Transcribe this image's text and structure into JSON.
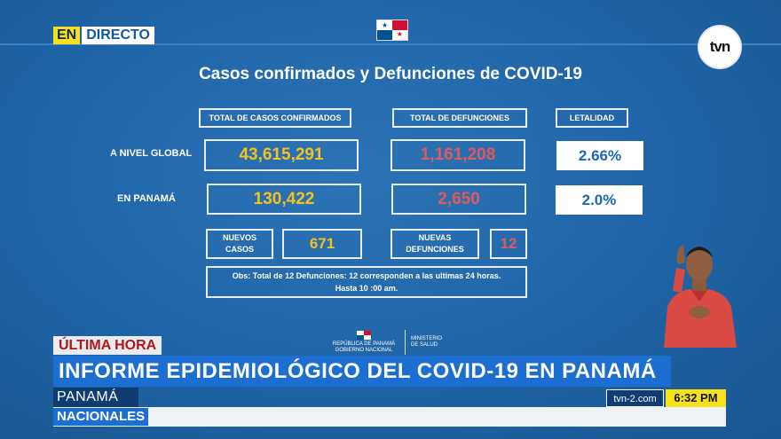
{
  "live": {
    "en": "EN",
    "directo": "DIRECTO"
  },
  "logo_text": "tvn",
  "title": "Casos confirmados y Defunciones de COVID-19",
  "headers": {
    "confirmed": "TOTAL DE CASOS CONFIRMADOS",
    "deaths": "TOTAL DE DEFUNCIONES",
    "lethality": "LETALIDAD"
  },
  "rows": {
    "global": {
      "label": "A NIVEL GLOBAL",
      "confirmed": "43,615,291",
      "deaths": "1,161,208",
      "lethality": "2.66%"
    },
    "panama": {
      "label": "EN PANAMÁ",
      "confirmed": "130,422",
      "deaths": "2,650",
      "lethality": "2.0%"
    }
  },
  "new": {
    "cases_label_1": "NUEVOS",
    "cases_label_2": "CASOS",
    "cases_value": "671",
    "deaths_label_1": "NUEVAS",
    "deaths_label_2": "DEFUNCIONES",
    "deaths_value": "12"
  },
  "obs": {
    "line1": "Obs: Total de 12 Defunciones: 12 corresponden a las ultimas 24 horas.",
    "line2": "Hasta 10 :00 am."
  },
  "ministry": {
    "rep_line1": "REPÚBLICA DE PANAMÁ",
    "rep_line2": "GOBIERNO NACIONAL",
    "min_line1": "MINISTERIO",
    "min_line2": "DE SALUD"
  },
  "lower_third": {
    "tag": "ÚLTIMA HORA",
    "headline": "INFORME EPIDEMIOLÓGICO DEL COVID-19 EN PANAMÁ",
    "place": "PANAMÁ",
    "section": "NACIONALES",
    "site": "tvn-2.com",
    "time": "6:32 PM"
  },
  "colors": {
    "background": "#1f64a6",
    "confirmed_value": "#f4c21b",
    "deaths_value": "#e05a5a",
    "lethality_value": "#1c67b3",
    "headline_bar": "#1c6fd0",
    "time_badge": "#f7e11a"
  }
}
